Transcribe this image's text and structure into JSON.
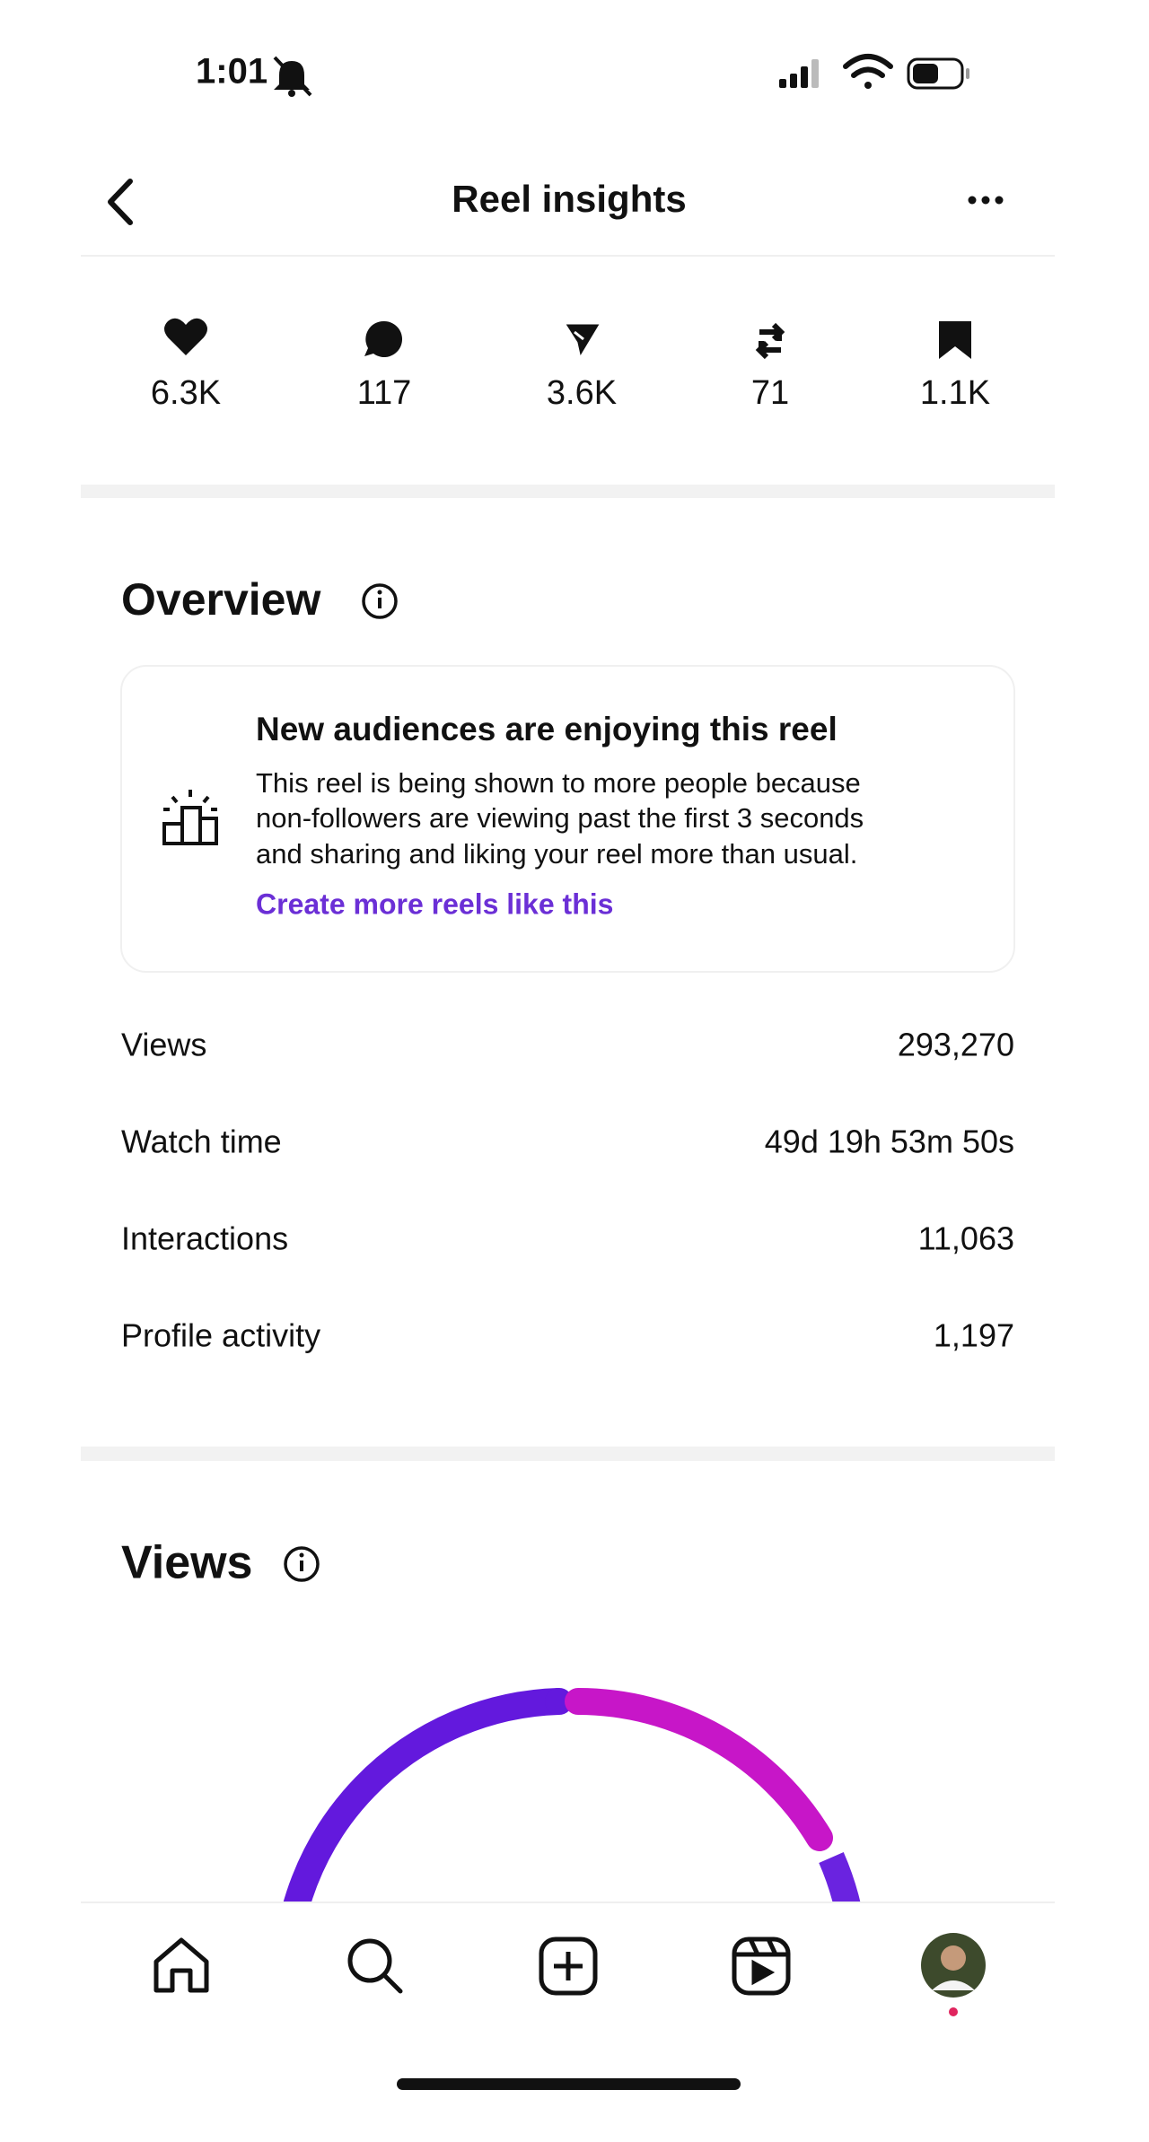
{
  "status": {
    "time": "1:01"
  },
  "header": {
    "title": "Reel insights"
  },
  "stats": [
    "6.3K",
    "117",
    "3.6K",
    "71",
    "1.1K"
  ],
  "overview": {
    "title": "Overview",
    "card": {
      "title": "New audiences are enjoying this reel",
      "body": [
        "This reel is being shown to more people because",
        "non-followers are viewing past the first 3 seconds",
        "and sharing and liking your reel more than usual."
      ],
      "link": "Create more reels like this"
    },
    "rows": [
      {
        "label": "Views",
        "value": "293,270"
      },
      {
        "label": "Watch time",
        "value": "49d 19h 53m 50s"
      },
      {
        "label": "Interactions",
        "value": "11,063"
      },
      {
        "label": "Profile activity",
        "value": "1,197"
      }
    ]
  },
  "views": {
    "title": "Views"
  }
}
